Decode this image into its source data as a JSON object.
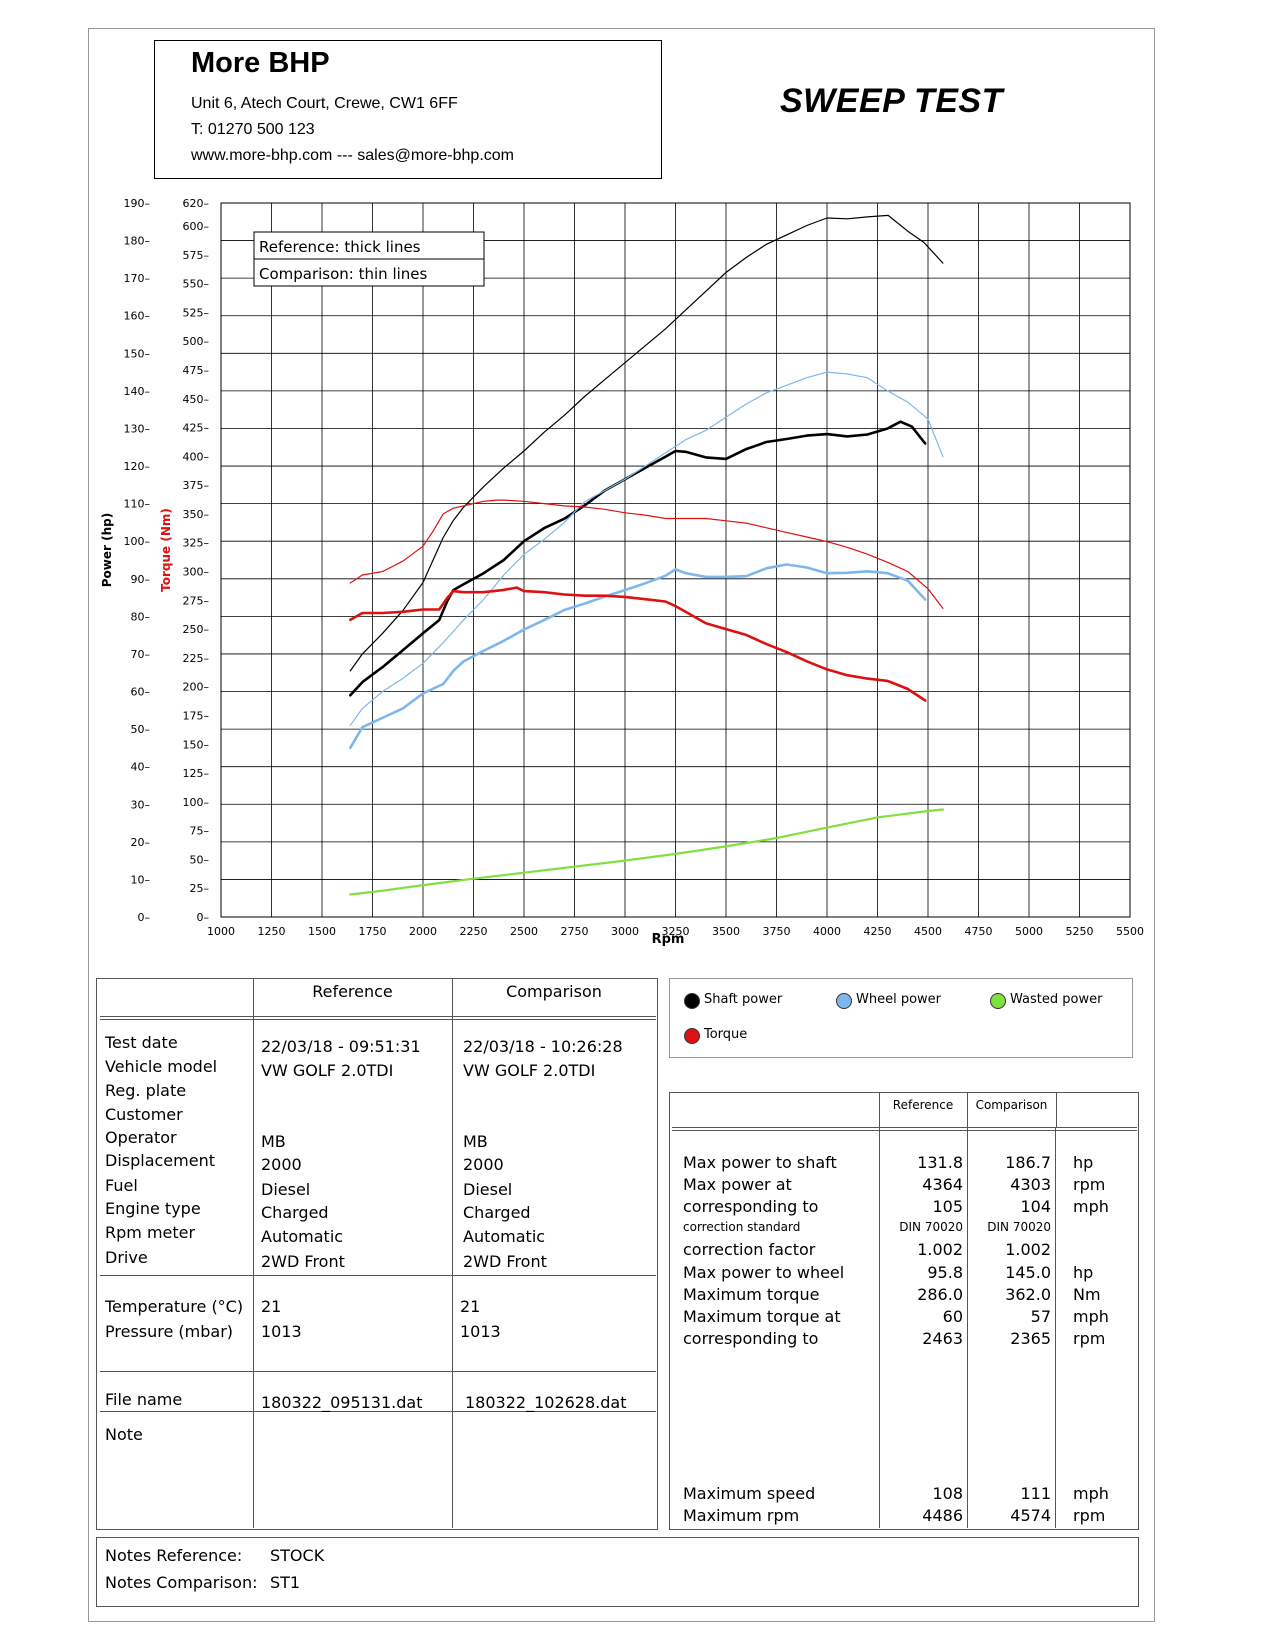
{
  "header": {
    "company_name": "More BHP",
    "address": "Unit 6, Atech Court, Crewe, CW1 6FF",
    "phone": "T: 01270 500 123",
    "web": "www.more-bhp.com --- sales@more-bhp.com",
    "report_title": "SWEEP TEST"
  },
  "chart_data": {
    "type": "line",
    "xlabel": "Rpm",
    "ylabel_power": "Power (hp)",
    "ylabel_torque": "Torque (Nm)",
    "x_ticks": [
      1000,
      1250,
      1500,
      1750,
      2000,
      2250,
      2500,
      2750,
      3000,
      3250,
      3500,
      3750,
      4000,
      4250,
      4500,
      4750,
      5000,
      5250,
      5500
    ],
    "power_ticks": [
      0,
      10,
      20,
      30,
      40,
      50,
      60,
      70,
      80,
      90,
      100,
      110,
      120,
      130,
      140,
      150,
      160,
      170,
      180,
      190
    ],
    "torque_ticks": [
      0,
      25,
      50,
      75,
      100,
      125,
      150,
      175,
      200,
      225,
      250,
      275,
      300,
      325,
      350,
      375,
      400,
      425,
      450,
      475,
      500,
      525,
      550,
      575,
      600,
      620
    ],
    "xlim": [
      1000,
      5500
    ],
    "power_ylim": [
      0,
      190
    ],
    "torque_ylim": [
      0,
      620
    ],
    "grid": true,
    "line_style_note": [
      "Reference: thick lines",
      "Comparison: thin lines"
    ],
    "legend": [
      "Shaft power",
      "Wheel power",
      "Wasted power",
      "Torque"
    ],
    "colors": {
      "shaft": "#000000",
      "wheel": "#7fb6ec",
      "wasted": "#80e040",
      "torque": "#dd1111"
    },
    "series": [
      {
        "name": "Shaft power",
        "run": "Reference",
        "unit": "hp",
        "x": [
          1640,
          1700,
          1800,
          1900,
          2000,
          2080,
          2120,
          2150,
          2200,
          2300,
          2400,
          2500,
          2600,
          2700,
          2800,
          2900,
          3000,
          3100,
          3200,
          3250,
          3300,
          3400,
          3500,
          3600,
          3700,
          3800,
          3900,
          4000,
          4100,
          4200,
          4300,
          4364,
          4420,
          4486
        ],
        "y": [
          59,
          62.5,
          66.5,
          71,
          75.5,
          79,
          84,
          87,
          88.5,
          91.5,
          95,
          100,
          103.5,
          106,
          109.5,
          113.5,
          116.5,
          119.5,
          122.5,
          124,
          123.8,
          122.3,
          121.9,
          124.5,
          126.4,
          127.2,
          128.1,
          128.5,
          127.9,
          128.4,
          130,
          131.8,
          130.5,
          126
        ]
      },
      {
        "name": "Shaft power",
        "run": "Comparison",
        "unit": "hp",
        "x": [
          1640,
          1700,
          1800,
          1900,
          2000,
          2050,
          2100,
          2150,
          2200,
          2300,
          2400,
          2500,
          2600,
          2700,
          2800,
          2900,
          3000,
          3100,
          3200,
          3300,
          3400,
          3500,
          3600,
          3700,
          3800,
          3900,
          4000,
          4100,
          4200,
          4303,
          4400,
          4480,
          4574
        ],
        "y": [
          65.5,
          70,
          75.5,
          81.5,
          89,
          95,
          101,
          105.5,
          109,
          114.5,
          119.5,
          124,
          129,
          133.5,
          138.5,
          143,
          147.5,
          152,
          156.5,
          161.5,
          166.5,
          171.5,
          175.5,
          179,
          181.5,
          184,
          186,
          185.8,
          186.3,
          186.7,
          182.5,
          179.5,
          174
        ]
      },
      {
        "name": "Wheel power",
        "run": "Reference",
        "unit": "hp",
        "x": [
          1640,
          1700,
          1800,
          1900,
          2000,
          2100,
          2150,
          2200,
          2300,
          2400,
          2500,
          2600,
          2700,
          2800,
          2900,
          3000,
          3100,
          3200,
          3250,
          3300,
          3400,
          3500,
          3600,
          3700,
          3800,
          3900,
          4000,
          4100,
          4200,
          4300,
          4400,
          4486
        ],
        "y": [
          45,
          50.5,
          53,
          55.5,
          59.5,
          62,
          65.5,
          68,
          70.8,
          73.5,
          76.5,
          79,
          81.7,
          83.4,
          85.3,
          87,
          88.8,
          90.8,
          92.5,
          91.5,
          90.5,
          90.5,
          90.7,
          92.8,
          93.8,
          93,
          91.5,
          91.6,
          92,
          91.5,
          89.5,
          84.5
        ]
      },
      {
        "name": "Wheel power",
        "run": "Comparison",
        "unit": "hp",
        "x": [
          1640,
          1700,
          1800,
          1900,
          2000,
          2100,
          2200,
          2300,
          2400,
          2500,
          2600,
          2700,
          2800,
          2900,
          3000,
          3100,
          3200,
          3300,
          3400,
          3500,
          3600,
          3700,
          3800,
          3900,
          4000,
          4100,
          4200,
          4300,
          4400,
          4500,
          4574
        ],
        "y": [
          51,
          55.5,
          60,
          63.5,
          67.5,
          73,
          79,
          84.5,
          91,
          96.5,
          100.5,
          105,
          110.5,
          113.5,
          116.5,
          120,
          123.5,
          127,
          129.5,
          133,
          136.5,
          139.5,
          141.5,
          143.5,
          145,
          144.5,
          143.5,
          140,
          137,
          132.5,
          122.5
        ]
      },
      {
        "name": "Torque",
        "run": "Reference",
        "unit": "Nm",
        "x": [
          1640,
          1700,
          1800,
          1900,
          2000,
          2080,
          2120,
          2150,
          2200,
          2300,
          2400,
          2463,
          2500,
          2600,
          2700,
          2800,
          2900,
          3000,
          3100,
          3200,
          3250,
          3300,
          3400,
          3500,
          3600,
          3700,
          3800,
          3900,
          4000,
          4100,
          4200,
          4300,
          4400,
          4486
        ],
        "y": [
          258,
          264,
          264,
          265,
          267,
          267,
          277,
          283,
          282,
          282,
          284,
          286,
          283,
          282,
          280,
          279,
          279,
          278,
          276,
          274,
          270,
          265,
          255,
          250,
          245,
          237,
          230,
          222,
          215,
          210,
          207,
          205,
          198,
          188
        ]
      },
      {
        "name": "Torque",
        "run": "Comparison",
        "unit": "Nm",
        "x": [
          1640,
          1700,
          1800,
          1900,
          2000,
          2050,
          2100,
          2150,
          2200,
          2300,
          2365,
          2400,
          2500,
          2600,
          2700,
          2800,
          2900,
          3000,
          3100,
          3200,
          3300,
          3400,
          3500,
          3600,
          3700,
          3800,
          3900,
          4000,
          4100,
          4200,
          4300,
          4400,
          4500,
          4574
        ],
        "y": [
          290,
          297,
          300,
          309,
          322,
          335,
          350,
          355,
          357,
          361,
          362,
          362,
          361,
          359,
          357,
          356,
          354,
          351,
          349,
          346,
          346,
          346,
          344,
          342,
          338,
          334,
          330,
          326,
          321,
          315,
          308,
          300,
          285,
          268
        ]
      },
      {
        "name": "Wasted power",
        "run": "Comparison",
        "unit": "hp",
        "x": [
          1640,
          1800,
          2000,
          2250,
          2500,
          2750,
          3000,
          3250,
          3500,
          3750,
          4000,
          4250,
          4500,
          4574
        ],
        "y": [
          6,
          7,
          8.5,
          10.2,
          11.8,
          13.4,
          15,
          16.8,
          18.8,
          21,
          23.8,
          26.5,
          28.2,
          28.6
        ]
      }
    ]
  },
  "legend_box": {
    "items": [
      {
        "label": "Shaft power",
        "color": "#000000"
      },
      {
        "label": "Wheel power",
        "color": "#7fb6ec"
      },
      {
        "label": "Wasted power",
        "color": "#80e040"
      },
      {
        "label": "Torque",
        "color": "#dd1111"
      }
    ]
  },
  "vehicle_table": {
    "col_reference": "Reference",
    "col_comparison": "Comparison",
    "rows": [
      {
        "label": "Test date",
        "ref": "22/03/18 - 09:51:31",
        "cmp": "22/03/18 - 10:26:28"
      },
      {
        "label": "Vehicle model",
        "ref": "VW GOLF 2.0TDI",
        "cmp": "VW GOLF 2.0TDI"
      },
      {
        "label": "Reg. plate",
        "ref": "",
        "cmp": ""
      },
      {
        "label": "Customer",
        "ref": "",
        "cmp": ""
      },
      {
        "label": "Operator",
        "ref": "MB",
        "cmp": "MB"
      },
      {
        "label": "Displacement",
        "ref": "2000",
        "cmp": "2000"
      },
      {
        "label": "Fuel",
        "ref": "Diesel",
        "cmp": "Diesel"
      },
      {
        "label": "Engine type",
        "ref": "Charged",
        "cmp": "Charged"
      },
      {
        "label": "Rpm meter",
        "ref": "Automatic",
        "cmp": "Automatic"
      },
      {
        "label": "Drive",
        "ref": "2WD Front",
        "cmp": "2WD Front"
      }
    ],
    "conditions": [
      {
        "label": "Temperature (°C)",
        "ref": "21",
        "cmp": "21"
      },
      {
        "label": "Pressure (mbar)",
        "ref": "1013",
        "cmp": "1013"
      }
    ],
    "file": {
      "label": "File name",
      "ref": "180322_095131.dat",
      "cmp": "180322_102628.dat"
    },
    "note_label": "Note"
  },
  "results_table": {
    "col_reference": "Reference",
    "col_comparison": "Comparison",
    "rows": [
      {
        "label": "Max power to shaft",
        "ref": "131.8",
        "cmp": "186.7",
        "unit": "hp"
      },
      {
        "label": "Max power at",
        "ref": "4364",
        "cmp": "4303",
        "unit": "rpm"
      },
      {
        "label": "corresponding to",
        "ref": "105",
        "cmp": "104",
        "unit": "mph"
      },
      {
        "label": "correction standard",
        "ref": "DIN 70020",
        "cmp": "DIN 70020",
        "unit": "",
        "small": true
      },
      {
        "label": "correction factor",
        "ref": "1.002",
        "cmp": "1.002",
        "unit": ""
      },
      {
        "label": "Max power to wheel",
        "ref": "95.8",
        "cmp": "145.0",
        "unit": "hp"
      },
      {
        "label": "Maximum torque",
        "ref": "286.0",
        "cmp": "362.0",
        "unit": "Nm"
      },
      {
        "label": "Maximum torque at",
        "ref": "60",
        "cmp": "57",
        "unit": "mph"
      },
      {
        "label": "corresponding to",
        "ref": "2463",
        "cmp": "2365",
        "unit": "rpm"
      }
    ],
    "bottom_rows": [
      {
        "label": "Maximum speed",
        "ref": "108",
        "cmp": "111",
        "unit": "mph"
      },
      {
        "label": "Maximum rpm",
        "ref": "4486",
        "cmp": "4574",
        "unit": "rpm"
      }
    ]
  },
  "notes": {
    "ref_label": "Notes Reference:",
    "ref_value": "STOCK",
    "cmp_label": "Notes Comparison:",
    "cmp_value": "ST1"
  }
}
